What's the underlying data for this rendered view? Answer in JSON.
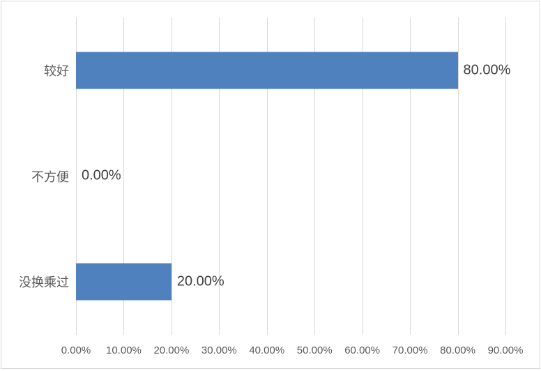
{
  "chart_data": {
    "type": "bar",
    "orientation": "horizontal",
    "title": "",
    "xlabel": "",
    "ylabel": "",
    "categories": [
      "较好",
      "不方便",
      "没换乘过"
    ],
    "values": [
      80,
      0,
      20
    ],
    "data_labels": [
      "80.00%",
      "0.00%",
      "20.00%"
    ],
    "x_ticks": [
      "0.00%",
      "10.00%",
      "20.00%",
      "30.00%",
      "40.00%",
      "50.00%",
      "60.00%",
      "70.00%",
      "80.00%",
      "90.00%"
    ],
    "xlim": [
      0,
      90
    ],
    "grid": "vertical-only",
    "legend": "none",
    "colors": {
      "bar": "#4e81bd",
      "gridline": "#d9d9d9",
      "chart_border": "#d7d7d7",
      "axis_text": "#595959",
      "data_label_text": "#404040",
      "background": "#ffffff"
    }
  }
}
